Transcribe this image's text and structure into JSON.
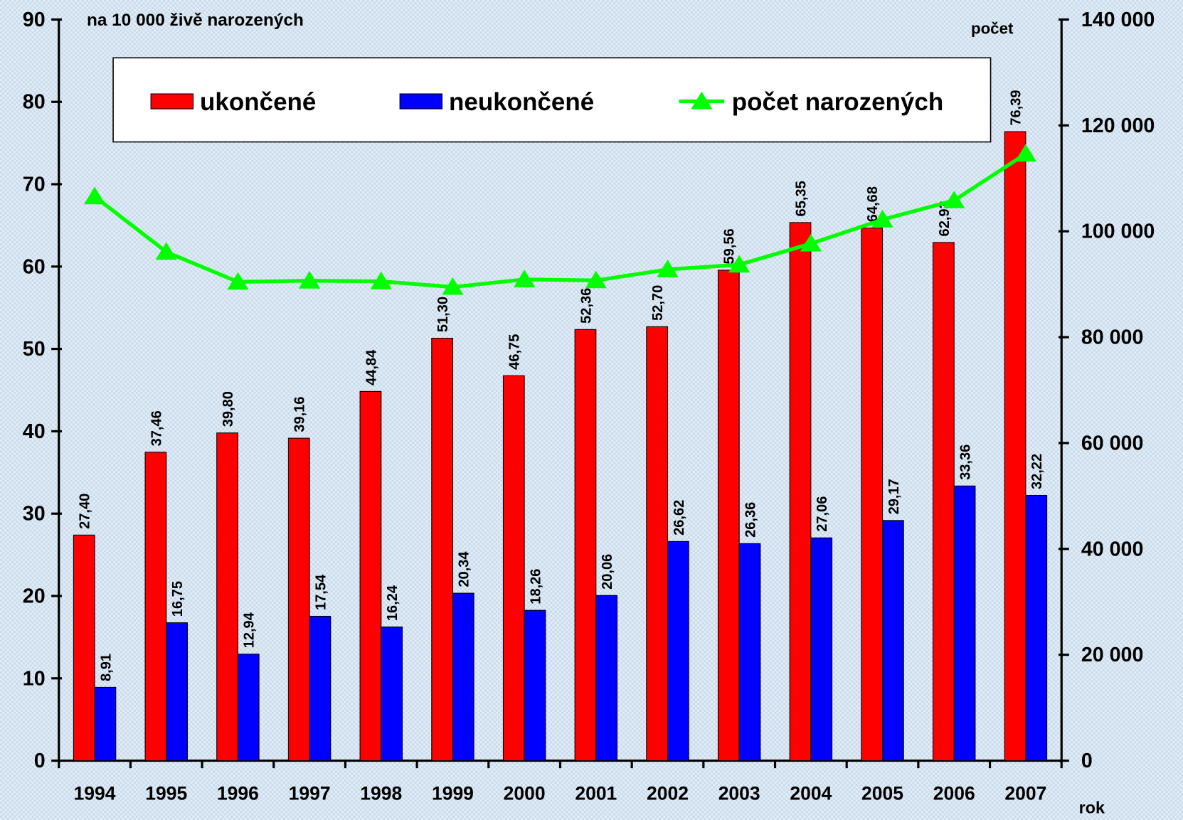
{
  "chart_data": {
    "type": "bar",
    "y_label": "na 10 000 živě narozených",
    "y2_label": "počet",
    "x_label": "rok",
    "categories": [
      "1994",
      "1995",
      "1996",
      "1997",
      "1998",
      "1999",
      "2000",
      "2001",
      "2002",
      "2003",
      "2004",
      "2005",
      "2006",
      "2007"
    ],
    "series": [
      {
        "name": "ukončené",
        "color": "#ff0000",
        "type": "bar",
        "values": [
          27.4,
          37.46,
          39.8,
          39.16,
          44.84,
          51.3,
          46.75,
          52.36,
          52.7,
          59.56,
          65.35,
          64.68,
          62.93,
          76.39
        ],
        "value_labels": [
          "27,40",
          "37,46",
          "39,80",
          "39,16",
          "44,84",
          "51,30",
          "46,75",
          "52,36",
          "52,70",
          "59,56",
          "65,35",
          "64,68",
          "62,93",
          "76,39"
        ]
      },
      {
        "name": "neukončené",
        "color": "#0000ff",
        "type": "bar",
        "values": [
          8.91,
          16.75,
          12.94,
          17.54,
          16.24,
          20.34,
          18.26,
          20.06,
          26.62,
          26.36,
          27.06,
          29.17,
          33.36,
          32.22
        ],
        "value_labels": [
          "8,91",
          "16,75",
          "12,94",
          "17,54",
          "16,24",
          "20,34",
          "18,26",
          "20,06",
          "26,62",
          "26,36",
          "27,06",
          "29,17",
          "33,36",
          "32,22"
        ]
      },
      {
        "name": "počet narozených",
        "color": "#00ff00",
        "type": "line",
        "axis": "y2",
        "values": [
          106579,
          96097,
          90446,
          90657,
          90535,
          89471,
          90910,
          90715,
          92786,
          93685,
          97664,
          102211,
          105831,
          114632
        ]
      }
    ],
    "ylim": [
      0,
      90
    ],
    "yticks": [
      0,
      10,
      20,
      30,
      40,
      50,
      60,
      70,
      80,
      90
    ],
    "y2lim": [
      0,
      140000
    ],
    "y2ticks": [
      0,
      {
        "value": 20000,
        "label": "20 000"
      },
      {
        "value": 40000,
        "label": "40 000"
      },
      {
        "value": 60000,
        "label": "60 000"
      },
      {
        "value": 80000,
        "label": "80 000"
      },
      {
        "value": 100000,
        "label": "100 000"
      },
      {
        "value": 120000,
        "label": "120 000"
      },
      {
        "value": 140000,
        "label": "140 000"
      }
    ],
    "legend": "top"
  }
}
